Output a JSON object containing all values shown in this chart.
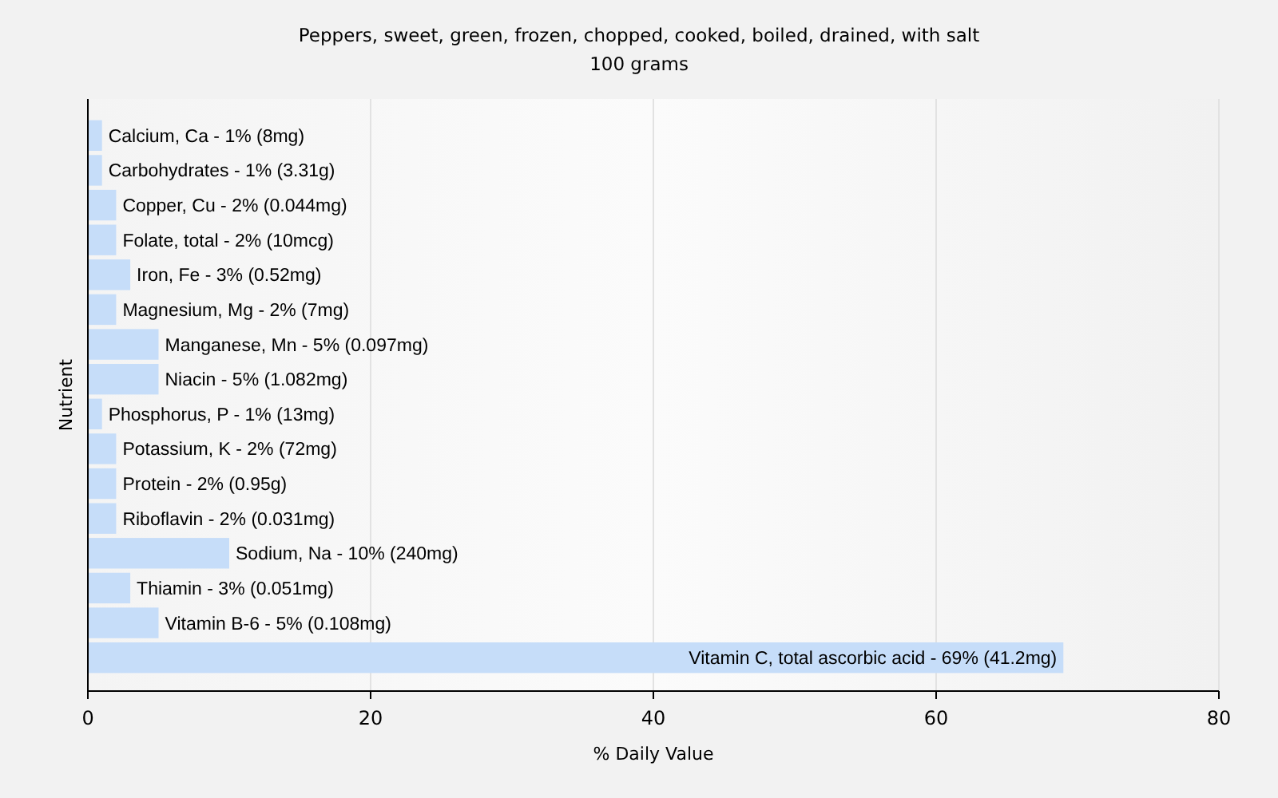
{
  "chart_data": {
    "type": "bar",
    "orientation": "horizontal",
    "title": "Peppers, sweet, green, frozen, chopped, cooked, boiled, drained, with salt",
    "subtitle": "100 grams",
    "xlabel": "% Daily Value",
    "ylabel": "Nutrient",
    "categories": [
      "Calcium, Ca - 1% (8mg)",
      "Carbohydrates - 1% (3.31g)",
      "Copper, Cu - 2% (0.044mg)",
      "Folate, total - 2% (10mcg)",
      "Iron, Fe - 3% (0.52mg)",
      "Magnesium, Mg - 2% (7mg)",
      "Manganese, Mn - 5% (0.097mg)",
      "Niacin - 5% (1.082mg)",
      "Phosphorus, P - 1% (13mg)",
      "Potassium, K - 2% (72mg)",
      "Protein - 2% (0.95g)",
      "Riboflavin - 2% (0.031mg)",
      "Sodium, Na - 10% (240mg)",
      "Thiamin - 3% (0.051mg)",
      "Vitamin B-6 - 5% (0.108mg)",
      "Vitamin C, total ascorbic acid - 69% (41.2mg)"
    ],
    "values": [
      1,
      1,
      2,
      2,
      3,
      2,
      5,
      5,
      1,
      2,
      2,
      2,
      10,
      3,
      5,
      69
    ],
    "color": "#c6ddf9",
    "xlim": [
      0,
      80
    ],
    "xticks": [
      0,
      20,
      40,
      60,
      80
    ],
    "grid": "x"
  }
}
